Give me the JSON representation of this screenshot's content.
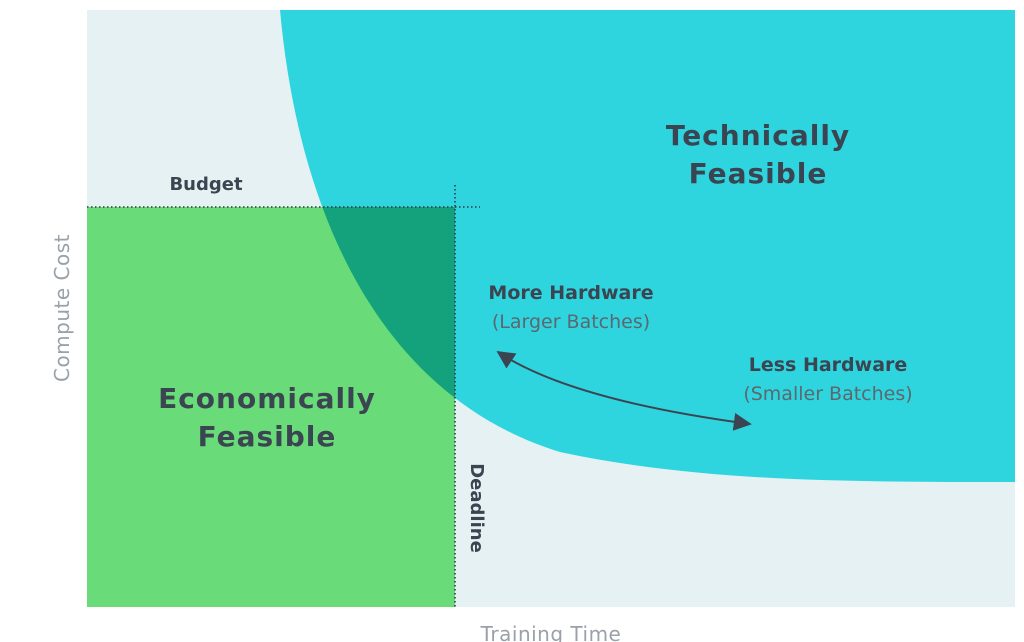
{
  "diagram": {
    "regions": {
      "technical": {
        "line1": "Technically",
        "line2": "Feasible"
      },
      "economic": {
        "line1": "Economically",
        "line2": "Feasible"
      }
    },
    "budget_label": "Budget",
    "deadline_label": "Deadline",
    "more_hardware": {
      "title": "More Hardware",
      "sub": "(Larger Batches)"
    },
    "less_hardware": {
      "title": "Less Hardware",
      "sub": "(Smaller Batches)"
    },
    "axes": {
      "x": "Training Time",
      "y": "Compute Cost"
    },
    "colors": {
      "background": "#e6f1f3",
      "technical": "#2ed5de",
      "economic": "#69dc79",
      "overlap": "#13a27b",
      "text": "#3b4551",
      "axis_text": "#9aa1a9"
    }
  }
}
